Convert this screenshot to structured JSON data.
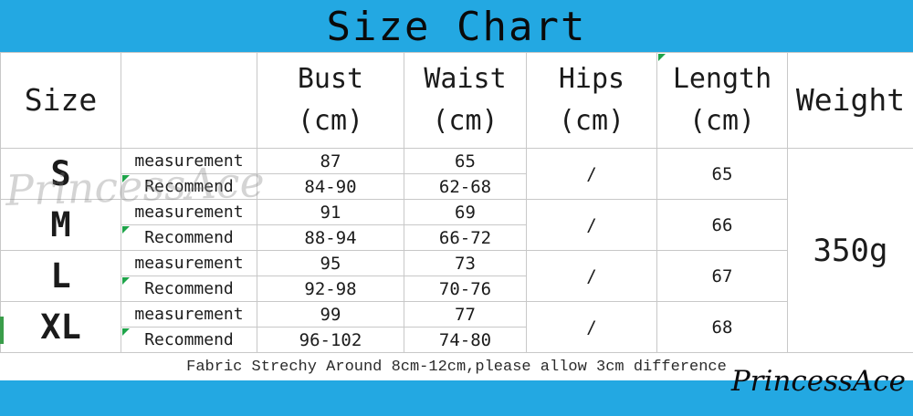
{
  "banner": {
    "title": "Size Chart"
  },
  "colors": {
    "accent": "#23A8E2",
    "gridline": "#C8C8C8",
    "marker_green": "#1FA44A"
  },
  "table": {
    "headers": {
      "size": "Size",
      "bust_line1": "Bust",
      "bust_line2": "(cm)",
      "waist_line1": "Waist",
      "waist_line2": "(cm)",
      "hips_line1": "Hips",
      "hips_line2": "(cm)",
      "length_line1": "Length",
      "length_line2": "(cm)",
      "weight": "Weight"
    },
    "row_labels": {
      "measurement": "measurement",
      "recommend": "Recommend"
    },
    "sizes": [
      {
        "label": "S",
        "bust_measurement": "87",
        "bust_recommend": "84-90",
        "waist_measurement": "65",
        "waist_recommend": "62-68",
        "hips": "/",
        "length": "65"
      },
      {
        "label": "M",
        "bust_measurement": "91",
        "bust_recommend": "88-94",
        "waist_measurement": "69",
        "waist_recommend": "66-72",
        "hips": "/",
        "length": "66"
      },
      {
        "label": "L",
        "bust_measurement": "95",
        "bust_recommend": "92-98",
        "waist_measurement": "73",
        "waist_recommend": "70-76",
        "hips": "/",
        "length": "67"
      },
      {
        "label": "XL",
        "bust_measurement": "99",
        "bust_recommend": "96-102",
        "waist_measurement": "77",
        "waist_recommend": "74-80",
        "hips": "/",
        "length": "68"
      }
    ],
    "weight_value": "350g"
  },
  "note": "Fabric Strechy Around 8cm-12cm,please allow 3cm difference",
  "watermark": {
    "table_text": "PrincessAce",
    "footer_text": "PrincessAce"
  }
}
